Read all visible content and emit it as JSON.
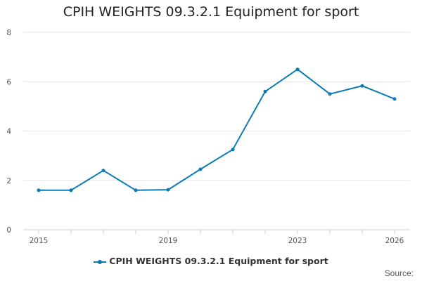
{
  "chart_data": {
    "type": "line",
    "title": "CPIH WEIGHTS 09.3.2.1 Equipment for sport",
    "xlabel": "",
    "ylabel": "",
    "x": [
      2015,
      2016,
      2017,
      2018,
      2019,
      2020,
      2021,
      2022,
      2023,
      2024,
      2025,
      2026
    ],
    "x_ticks": [
      "2015",
      "2019",
      "2023",
      "2026"
    ],
    "xlim": [
      2015,
      2026
    ],
    "y_ticks": [
      "0",
      "2",
      "4",
      "6",
      "8"
    ],
    "ylim": [
      0,
      8
    ],
    "grid": true,
    "series": [
      {
        "name": "CPIH WEIGHTS 09.3.2.1 Equipment for sport",
        "values": [
          1.6,
          1.6,
          2.4,
          1.6,
          1.62,
          2.45,
          3.25,
          5.6,
          6.5,
          5.5,
          5.83,
          5.3
        ],
        "color": "#0b7ab5"
      }
    ],
    "legend_position": "bottom"
  },
  "footer": {
    "source_label": "Source:"
  }
}
